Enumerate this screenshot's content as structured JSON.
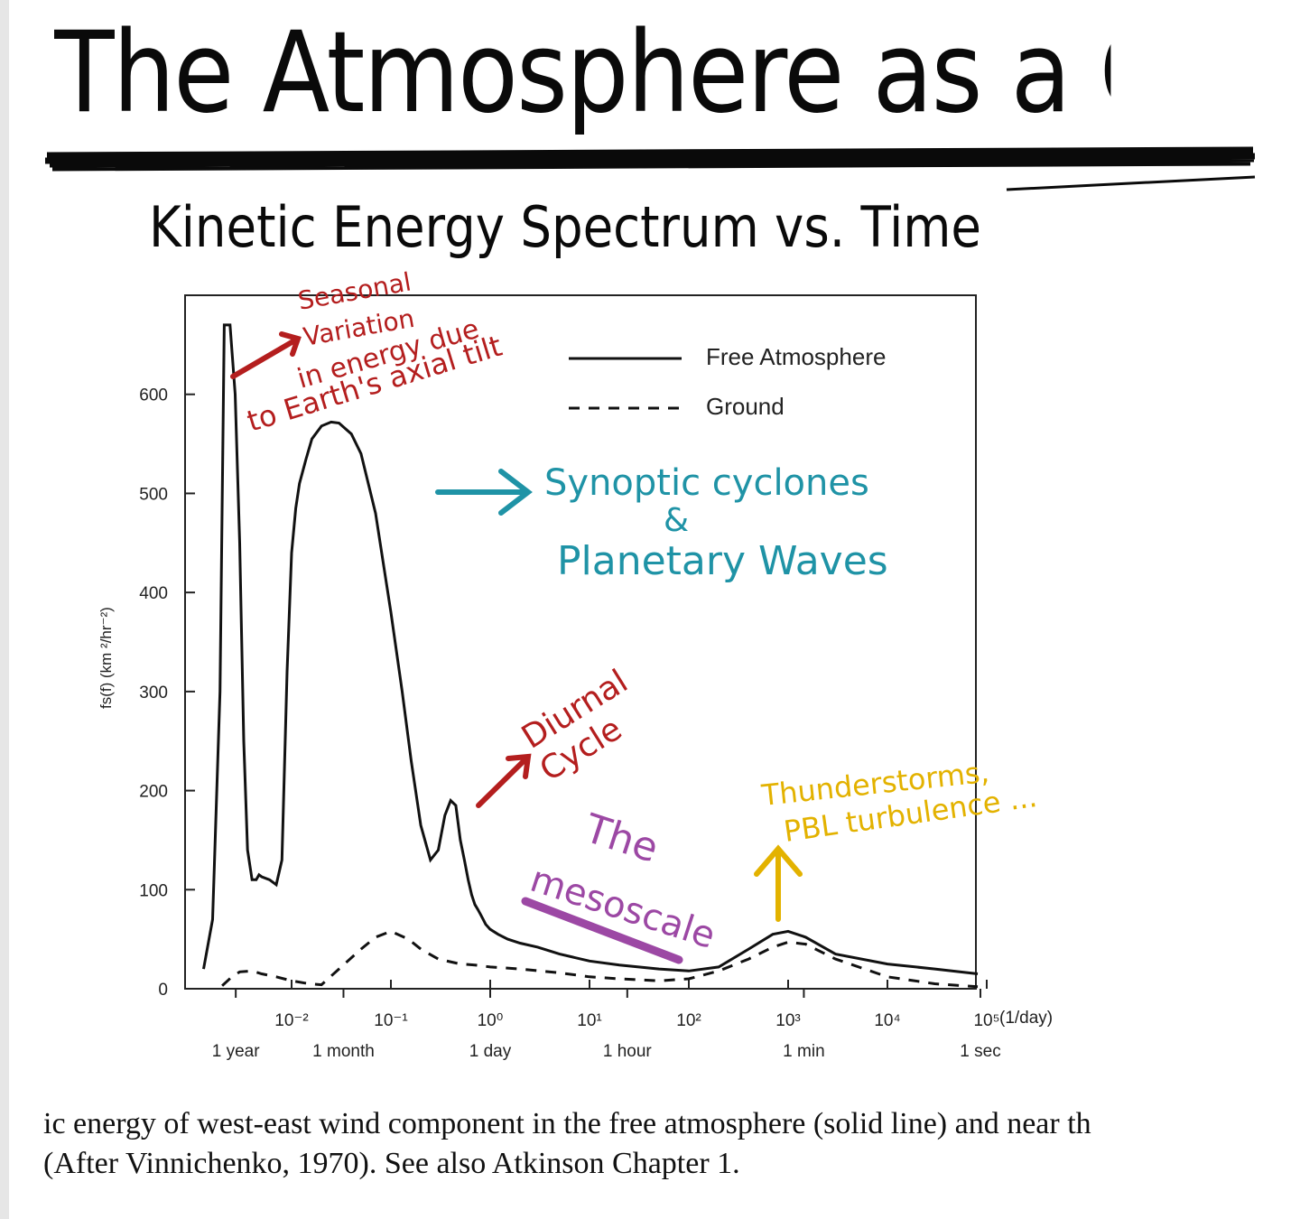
{
  "page": {
    "title": "The Atmosphere as a Contin",
    "subtitle": "Kinetic Energy Spectrum vs. Time",
    "caption_line1": "ic energy of west-east wind component in the free atmosphere (solid line) and near th",
    "caption_line2": "(After Vinnichenko, 1970). See also Atkinson Chapter 1."
  },
  "chart_data": {
    "type": "line",
    "x_scale": "log",
    "xlabel": "(1/day)",
    "ylabel": "fs(f) (km ²/hr⁻²)",
    "ylim": [
      0,
      700
    ],
    "y_ticks": [
      "0",
      "100",
      "200",
      "300",
      "400",
      "500",
      "600"
    ],
    "x_ticks": [
      {
        "value": 0.01,
        "label": "10⁻²"
      },
      {
        "value": 0.1,
        "label": "10⁻¹"
      },
      {
        "value": 1,
        "label": "10⁰"
      },
      {
        "value": 10,
        "label": "10¹"
      },
      {
        "value": 100,
        "label": "10²"
      },
      {
        "value": 1000,
        "label": "10³"
      },
      {
        "value": 10000,
        "label": "10⁴"
      },
      {
        "value": 100000,
        "label": "10⁵"
      }
    ],
    "period_labels": [
      {
        "value": 0.00274,
        "label": "1 year"
      },
      {
        "value": 0.0333,
        "label": "1 month"
      },
      {
        "value": 1,
        "label": "1 day"
      },
      {
        "value": 24,
        "label": "1 hour"
      },
      {
        "value": 1440,
        "label": "1 min"
      },
      {
        "value": 86400,
        "label": "1 sec"
      }
    ],
    "legend": {
      "position": "top-right"
    },
    "series": [
      {
        "name": "Free Atmosphere",
        "style": "solid",
        "x": [
          0.0013,
          0.0016,
          0.0019,
          0.0021,
          0.0024,
          0.0027,
          0.003,
          0.0033,
          0.0036,
          0.004,
          0.0044,
          0.0047,
          0.005,
          0.006,
          0.007,
          0.008,
          0.009,
          0.01,
          0.011,
          0.012,
          0.014,
          0.016,
          0.02,
          0.025,
          0.03,
          0.04,
          0.05,
          0.07,
          0.1,
          0.13,
          0.16,
          0.2,
          0.25,
          0.3,
          0.35,
          0.4,
          0.45,
          0.5,
          0.55,
          0.6,
          0.65,
          0.7,
          0.75,
          0.8,
          0.85,
          0.9,
          1.0,
          1.2,
          1.5,
          2,
          3,
          5,
          10,
          20,
          50,
          100,
          200,
          400,
          700,
          1000,
          1500,
          3000,
          10000,
          30000,
          100000
        ],
        "values": [
          20,
          70,
          300,
          670,
          670,
          600,
          450,
          250,
          140,
          110,
          110,
          115,
          113,
          110,
          105,
          130,
          320,
          440,
          485,
          510,
          535,
          555,
          568,
          572,
          571,
          560,
          540,
          480,
          380,
          300,
          230,
          165,
          130,
          140,
          175,
          190,
          185,
          150,
          130,
          110,
          95,
          85,
          80,
          75,
          70,
          65,
          60,
          55,
          50,
          46,
          42,
          35,
          28,
          24,
          20,
          18,
          22,
          40,
          55,
          58,
          52,
          35,
          25,
          20,
          15
        ]
      },
      {
        "name": "Ground",
        "style": "dashed",
        "x": [
          0.002,
          0.0025,
          0.003,
          0.004,
          0.005,
          0.007,
          0.01,
          0.015,
          0.02,
          0.03,
          0.05,
          0.07,
          0.1,
          0.15,
          0.2,
          0.3,
          0.5,
          0.7,
          1,
          2,
          5,
          10,
          20,
          50,
          100,
          200,
          400,
          700,
          1000,
          1500,
          3000,
          10000,
          30000,
          100000
        ],
        "values": [
          3,
          12,
          17,
          18,
          15,
          12,
          8,
          5,
          4,
          20,
          40,
          52,
          58,
          50,
          40,
          30,
          25,
          24,
          22,
          20,
          16,
          12,
          10,
          8,
          10,
          18,
          30,
          42,
          47,
          45,
          30,
          12,
          5,
          2
        ]
      }
    ]
  },
  "annotations": [
    {
      "id": "seasonal",
      "color": "#b41e1e",
      "lines": [
        "Seasonal",
        "Variation",
        "in energy due",
        "to Earth's axial tilt"
      ]
    },
    {
      "id": "synoptic",
      "color": "#1f93a6",
      "lines": [
        "Synoptic cyclones",
        "&",
        "Planetary Waves"
      ]
    },
    {
      "id": "diurnal",
      "color": "#b41e1e",
      "lines": [
        "Diurnal",
        "Cycle"
      ]
    },
    {
      "id": "mesoscale",
      "color": "#9c48a4",
      "lines": [
        "The",
        "mesoscale"
      ]
    },
    {
      "id": "thunder",
      "color": "#e3b200",
      "lines": [
        "Thunderstorms,",
        "PBL turbulence ..."
      ]
    }
  ]
}
